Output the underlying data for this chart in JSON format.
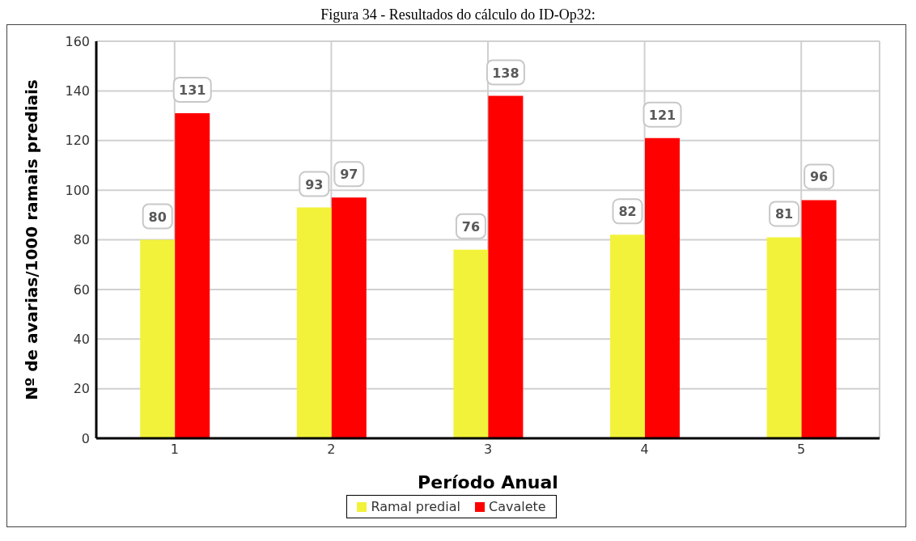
{
  "chart_data": {
    "type": "bar",
    "title": "Figura 34 - Resultados do cálculo do ID-Op32:",
    "xlabel": "Período Anual",
    "ylabel": "Nº de avarias/1000 ramais prediais",
    "categories": [
      "1",
      "2",
      "3",
      "4",
      "5"
    ],
    "series": [
      {
        "name": "Ramal predial",
        "color": "#f2f23a",
        "values": [
          80,
          93,
          76,
          82,
          81
        ]
      },
      {
        "name": "Cavalete",
        "color": "#ff0000",
        "values": [
          131,
          97,
          138,
          121,
          96
        ]
      }
    ],
    "ylim": [
      0,
      160
    ],
    "yticks": [
      0,
      20,
      40,
      60,
      80,
      100,
      120,
      140,
      160
    ],
    "grid": true,
    "legend": "bottom",
    "data_labels": true
  }
}
